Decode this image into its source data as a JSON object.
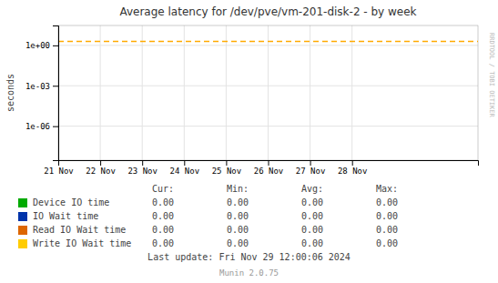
{
  "chart_data": {
    "type": "line",
    "title": "Average latency for /dev/pve/vm-201-disk-2  -  by week",
    "ylabel": "seconds",
    "log": "y",
    "grid": true,
    "xlim": [
      1732060800,
      1732924800
    ],
    "xticks": [
      {
        "value": 1732060800,
        "label": "21 Nov"
      },
      {
        "value": 1732147200,
        "label": "22 Nov"
      },
      {
        "value": 1732233600,
        "label": "23 Nov"
      },
      {
        "value": 1732320000,
        "label": "24 Nov"
      },
      {
        "value": 1732406400,
        "label": "25 Nov"
      },
      {
        "value": 1732492800,
        "label": "26 Nov"
      },
      {
        "value": 1732579200,
        "label": "27 Nov"
      },
      {
        "value": 1732665600,
        "label": "28 Nov"
      }
    ],
    "ylim": [
      3e-09,
      30
    ],
    "yticks": [
      {
        "value": 1e-06,
        "label": "1e-06"
      },
      {
        "value": 0.001,
        "label": "1e-03"
      },
      {
        "value": 1,
        "label": "1e+00"
      }
    ],
    "reference_line": {
      "value": 2.0,
      "color": "#ffaa00",
      "line_style": "dashed"
    },
    "stats_headers": [
      "Cur:",
      "Min:",
      "Avg:",
      "Max:"
    ],
    "series": [
      {
        "name": "Device IO time",
        "color": "#00aa00",
        "stats": [
          0,
          0,
          0,
          0
        ],
        "stats_labels": [
          "0.00",
          "0.00",
          "0.00",
          "0.00"
        ]
      },
      {
        "name": "IO Wait time",
        "color": "#0033aa",
        "stats": [
          0,
          0,
          0,
          0
        ],
        "stats_labels": [
          "0.00",
          "0.00",
          "0.00",
          "0.00"
        ]
      },
      {
        "name": "Read IO Wait time",
        "color": "#dd6600",
        "stats": [
          0,
          0,
          0,
          0
        ],
        "stats_labels": [
          "0.00",
          "0.00",
          "0.00",
          "0.00"
        ]
      },
      {
        "name": "Write IO Wait time",
        "color": "#ffcc00",
        "stats": [
          0,
          0,
          0,
          0
        ],
        "stats_labels": [
          "0.00",
          "0.00",
          "0.00",
          "0.00"
        ]
      }
    ],
    "watermark": "RRDTOOL / TOBI OETIKER",
    "last_update": "Last update: Fri Nov 29 12:00:06 2024",
    "footer": "Munin 2.0.75"
  }
}
